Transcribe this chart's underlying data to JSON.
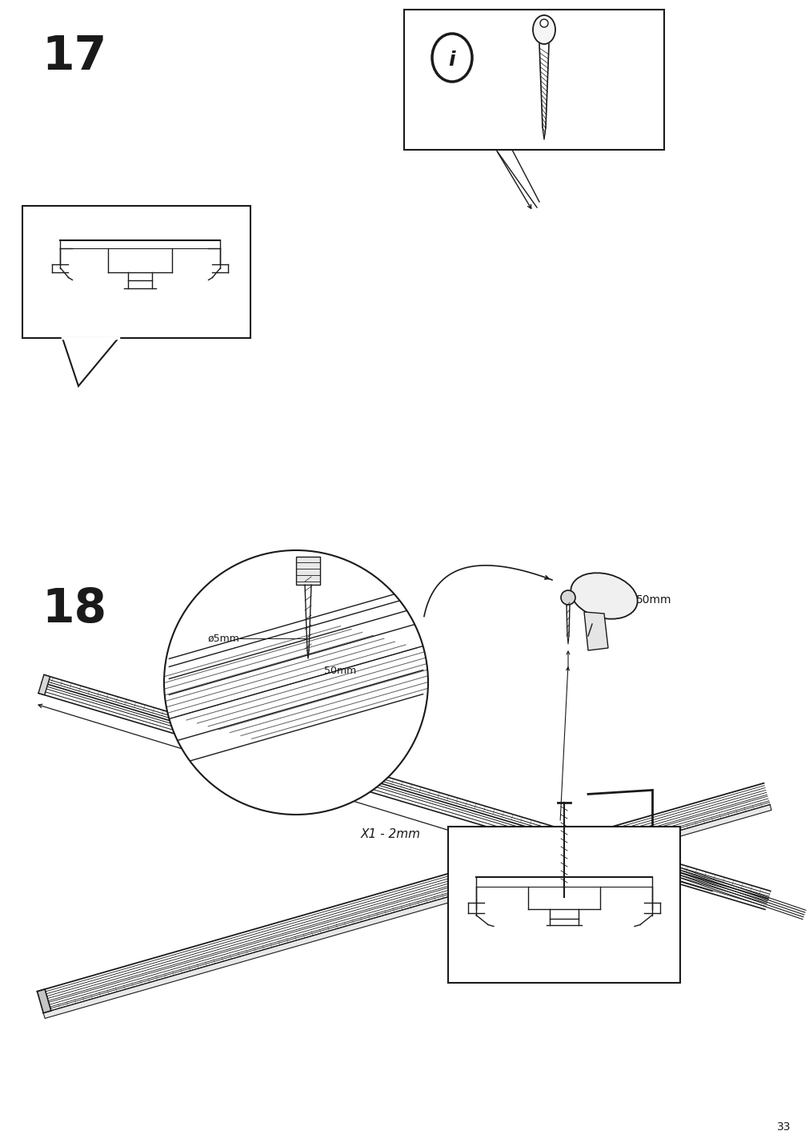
{
  "background_color": "#ffffff",
  "line_color": "#1a1a1a",
  "page_number": "33",
  "step17_label": "17",
  "step18_label": "18",
  "text_x1_2mm": "X1 - 2mm",
  "text_o5mm": "ø5mm",
  "text_50mm_zoom": "50mm",
  "text_50mm_drill": "50mm",
  "font_step": 42,
  "font_label": 11,
  "font_page": 10
}
